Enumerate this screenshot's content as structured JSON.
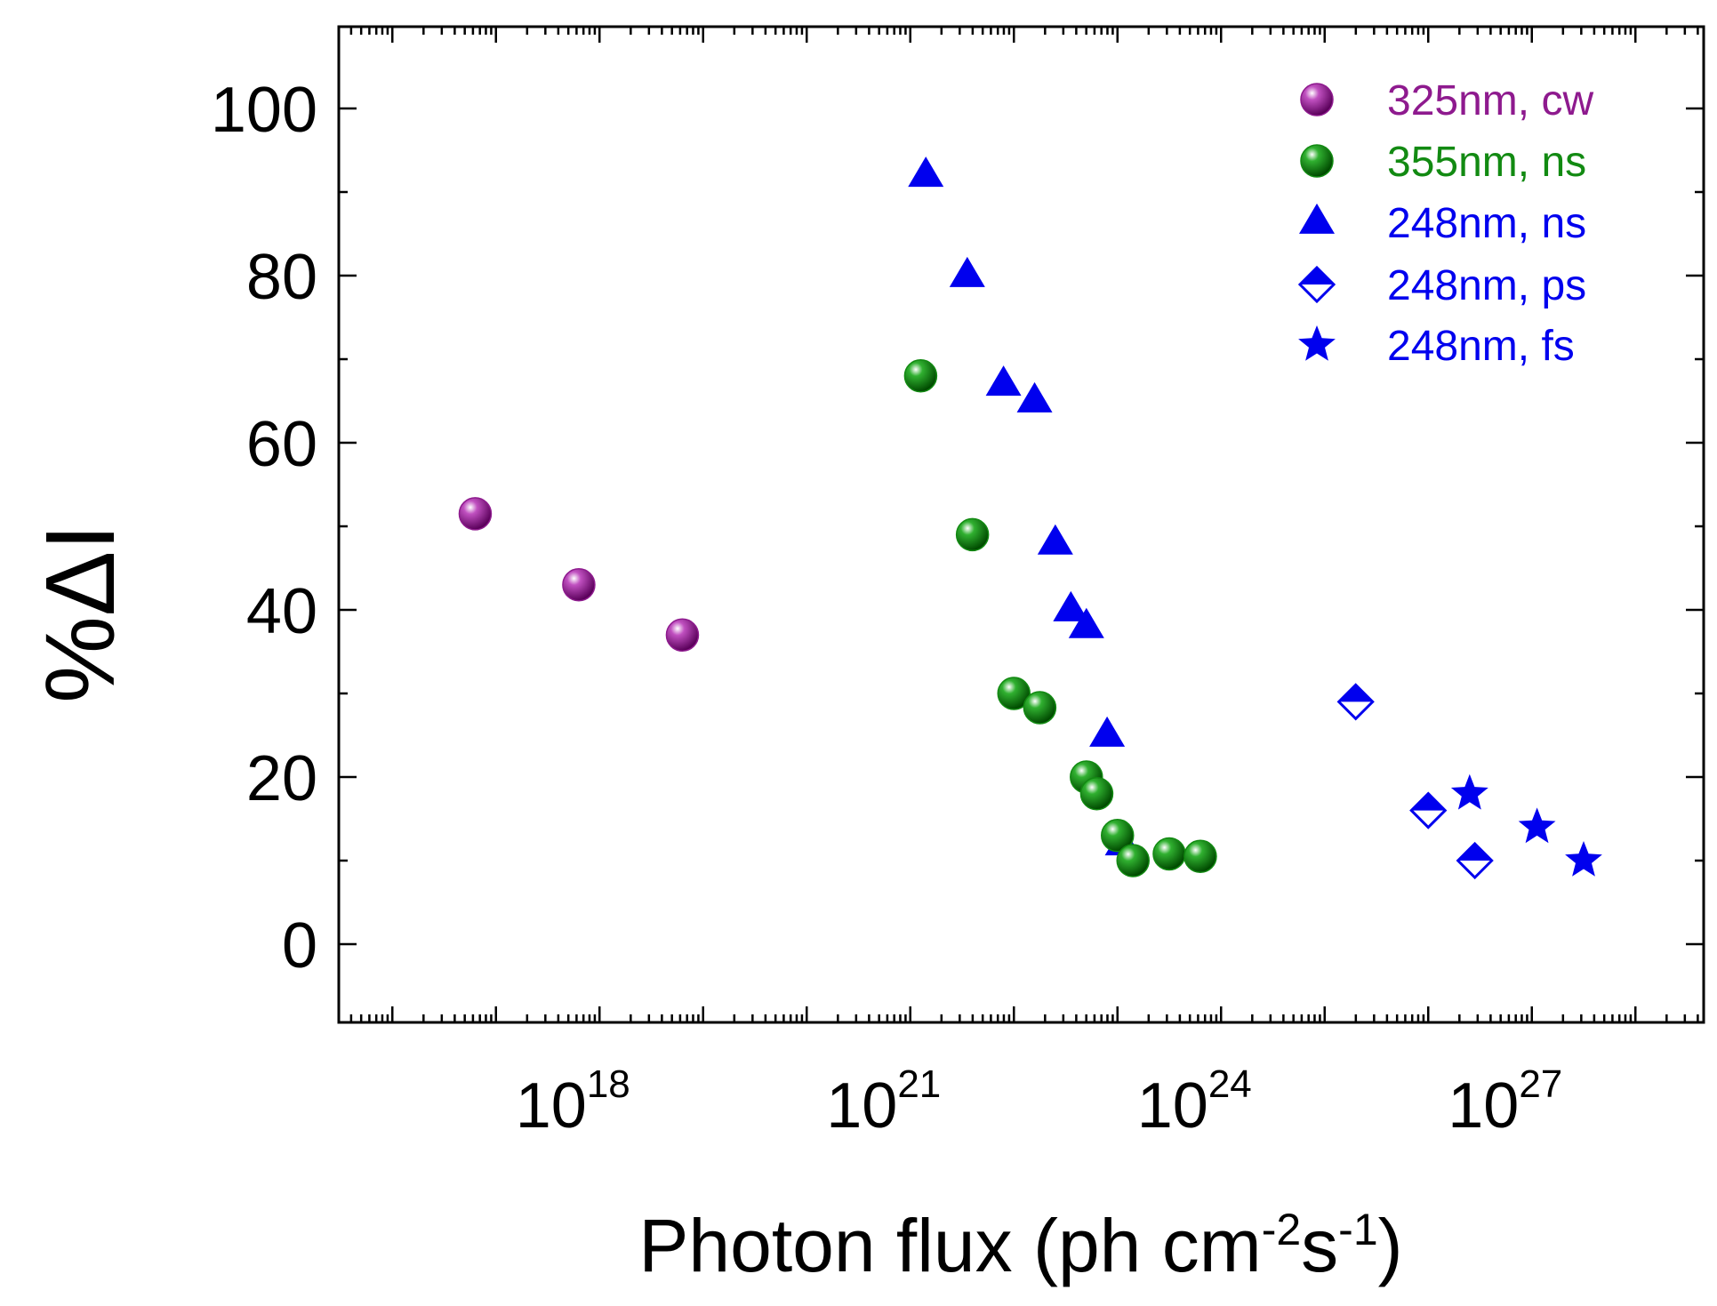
{
  "chart_data": {
    "type": "scatter",
    "title": "",
    "xlabel": {
      "base": "Photon flux (ph cm",
      "sup1": "-2",
      "mid": "s",
      "sup2": "-1",
      "end": ")"
    },
    "ylabel": {
      "prefix": "%",
      "symbol": "ΔI"
    },
    "xscale": "log",
    "xlim_log10": [
      15.5,
      29
    ],
    "ylim": [
      -10,
      110
    ],
    "xticks": [
      {
        "base": "10",
        "exp": "18",
        "log10": 18
      },
      {
        "base": "10",
        "exp": "21",
        "log10": 21
      },
      {
        "base": "10",
        "exp": "24",
        "log10": 24
      },
      {
        "base": "10",
        "exp": "27",
        "log10": 27
      }
    ],
    "yticks": [
      {
        "label": "0",
        "value": 0
      },
      {
        "label": "20",
        "value": 20
      },
      {
        "label": "40",
        "value": 40
      },
      {
        "label": "60",
        "value": 60
      },
      {
        "label": "80",
        "value": 80
      },
      {
        "label": "100",
        "value": 100
      }
    ],
    "legend_position": "top-right",
    "series": [
      {
        "name": "325nm, cw",
        "marker": "sphere",
        "color": "#8e1a8e",
        "points": [
          [
            16.8,
            51.5
          ],
          [
            17.8,
            43
          ],
          [
            18.8,
            37
          ]
        ]
      },
      {
        "name": "355nm, ns",
        "marker": "sphere",
        "color": "#128a12",
        "points": [
          [
            21.1,
            68
          ],
          [
            21.6,
            49
          ],
          [
            22.0,
            30
          ],
          [
            22.25,
            28.3
          ],
          [
            22.7,
            20
          ],
          [
            22.8,
            18
          ],
          [
            23.0,
            13
          ],
          [
            23.15,
            10
          ],
          [
            23.5,
            10.8
          ],
          [
            23.8,
            10.5
          ]
        ]
      },
      {
        "name": "248nm, ns",
        "marker": "triangle",
        "color": "#0000ee",
        "points": [
          [
            21.15,
            92
          ],
          [
            21.55,
            80
          ],
          [
            21.9,
            67
          ],
          [
            22.2,
            65
          ],
          [
            22.4,
            48
          ],
          [
            22.55,
            40
          ],
          [
            22.7,
            38
          ],
          [
            22.9,
            25
          ],
          [
            23.05,
            12
          ]
        ]
      },
      {
        "name": "248nm, ps",
        "marker": "half-diamond",
        "color": "#0000ee",
        "points": [
          [
            25.3,
            29
          ],
          [
            26.0,
            16
          ],
          [
            26.45,
            10
          ]
        ]
      },
      {
        "name": "248nm, fs",
        "marker": "star",
        "color": "#0000ee",
        "points": [
          [
            26.4,
            18
          ],
          [
            27.05,
            14
          ],
          [
            27.5,
            10
          ]
        ]
      }
    ]
  }
}
